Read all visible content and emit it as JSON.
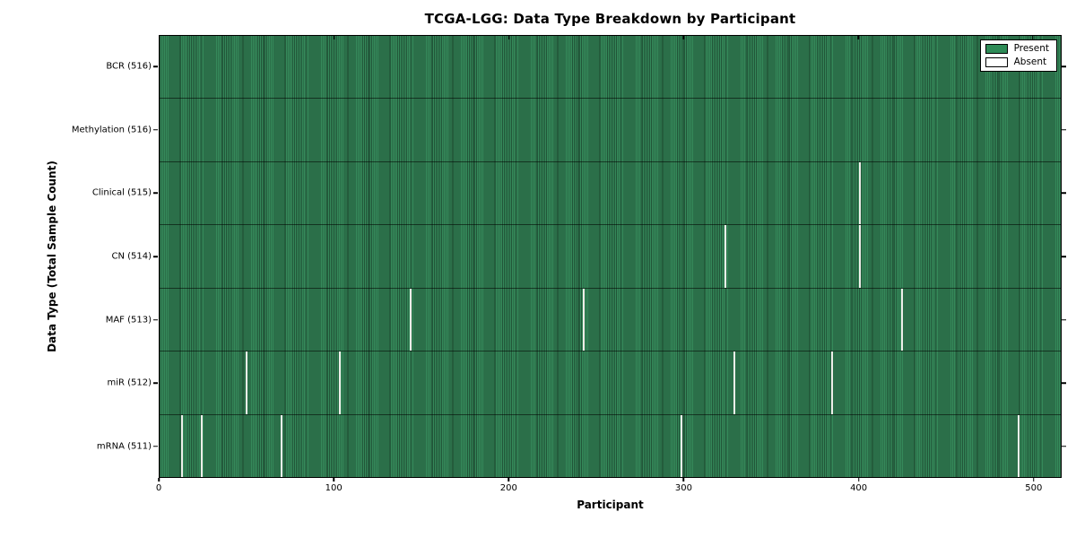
{
  "chart_data": {
    "type": "heatmap",
    "title": "TCGA-LGG: Data Type Breakdown by Participant",
    "xlabel": "Participant",
    "ylabel": "Data Type (Total Sample Count)",
    "x_ticks": [
      0,
      100,
      200,
      300,
      400,
      500
    ],
    "x_range": [
      0,
      516
    ],
    "n_participants": 516,
    "grid": false,
    "legend_position": "upper right",
    "legend": [
      {
        "label": "Present",
        "color": "#2e8b57"
      },
      {
        "label": "Absent",
        "color": "#ffffff"
      }
    ],
    "rows": [
      {
        "label": "BCR (516)",
        "data_type": "BCR",
        "total": 516,
        "absent_participants": []
      },
      {
        "label": "Methylation (516)",
        "data_type": "Methylation",
        "total": 516,
        "absent_participants": []
      },
      {
        "label": "Clinical (515)",
        "data_type": "Clinical",
        "total": 515,
        "absent_participants": [
          401
        ]
      },
      {
        "label": "CN (514)",
        "data_type": "CN",
        "total": 514,
        "absent_participants": [
          324,
          401
        ]
      },
      {
        "label": "MAF (513)",
        "data_type": "MAF",
        "total": 513,
        "absent_participants": [
          144,
          243,
          425
        ]
      },
      {
        "label": "miR (512)",
        "data_type": "miR",
        "total": 512,
        "absent_participants": [
          50,
          103,
          329,
          385
        ]
      },
      {
        "label": "mRNA (511)",
        "data_type": "mRNA",
        "total": 511,
        "absent_participants": [
          13,
          24,
          70,
          299,
          492
        ]
      }
    ],
    "colors": {
      "present": "#2e8b57",
      "absent": "#ffffff",
      "cell_edge": "#1b5e3a",
      "axis": "#000000",
      "background": "#ffffff"
    }
  }
}
